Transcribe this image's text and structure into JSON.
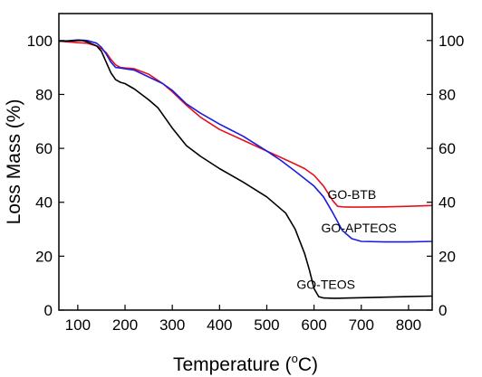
{
  "chart_data": {
    "type": "line",
    "xlabel": "Temperature (°C)",
    "xlabel_parts": {
      "pre": "Temperature (",
      "sup": "o",
      "post": "C)"
    },
    "ylabel": "Loss Mass (%)",
    "xlim": [
      60,
      850
    ],
    "ylim": [
      0,
      110
    ],
    "xticks": [
      100,
      200,
      300,
      400,
      500,
      600,
      700,
      800
    ],
    "yticks": [
      0,
      20,
      40,
      60,
      80,
      100
    ],
    "mirror_right_axis": true,
    "grid": false,
    "series": [
      {
        "name": "GO-BTB",
        "color": "#e8101a",
        "x": [
          60,
          80,
          100,
          120,
          140,
          150,
          160,
          170,
          180,
          190,
          200,
          220,
          250,
          280,
          300,
          330,
          360,
          400,
          450,
          500,
          550,
          580,
          600,
          620,
          640,
          650,
          660,
          680,
          700,
          750,
          800,
          850
        ],
        "y": [
          99.8,
          99.5,
          99.2,
          99.0,
          98.0,
          97.0,
          95.5,
          93.0,
          91.0,
          90.0,
          89.8,
          89.5,
          87.5,
          84.0,
          81.0,
          76.0,
          71.5,
          67.0,
          63.0,
          59.0,
          55.0,
          52.5,
          50.0,
          46.0,
          40.5,
          38.5,
          38.3,
          38.2,
          38.2,
          38.3,
          38.5,
          38.8
        ]
      },
      {
        "name": "GO-APTEOS",
        "color": "#1c1ce0",
        "x": [
          60,
          80,
          100,
          120,
          140,
          150,
          160,
          170,
          180,
          190,
          200,
          220,
          250,
          280,
          300,
          330,
          360,
          400,
          450,
          500,
          530,
          560,
          600,
          620,
          640,
          660,
          680,
          700,
          750,
          800,
          850
        ],
        "y": [
          99.8,
          99.9,
          100.2,
          100.0,
          99.0,
          97.5,
          95.0,
          92.0,
          90.0,
          89.8,
          89.5,
          89.0,
          86.5,
          84.0,
          81.5,
          76.5,
          73.0,
          69.0,
          64.5,
          59.0,
          55.5,
          51.5,
          46.0,
          42.0,
          36.0,
          29.5,
          26.5,
          25.5,
          25.3,
          25.3,
          25.5
        ]
      },
      {
        "name": "GO-TEOS",
        "color": "#000000",
        "x": [
          60,
          80,
          100,
          110,
          120,
          140,
          150,
          160,
          170,
          180,
          190,
          200,
          220,
          250,
          270,
          300,
          330,
          360,
          400,
          450,
          500,
          540,
          560,
          580,
          590,
          600,
          610,
          620,
          640,
          650,
          700,
          750,
          800,
          850
        ],
        "y": [
          99.8,
          99.8,
          100.0,
          100.0,
          99.5,
          98.0,
          96.0,
          92.0,
          88.0,
          85.5,
          84.5,
          84.0,
          82.0,
          78.0,
          75.0,
          67.5,
          61.0,
          57.0,
          52.5,
          47.5,
          42.0,
          36.0,
          30.0,
          21.0,
          15.0,
          8.0,
          5.0,
          4.5,
          4.4,
          4.4,
          4.6,
          4.8,
          5.0,
          5.2
        ]
      }
    ],
    "annotations": [
      {
        "text": "GO-BTB",
        "x": 680,
        "y": 43
      },
      {
        "text": "GO-APTEOS",
        "x": 695,
        "y": 30.5
      },
      {
        "text": "GO-TEOS",
        "x": 625,
        "y": 9.5
      }
    ]
  }
}
